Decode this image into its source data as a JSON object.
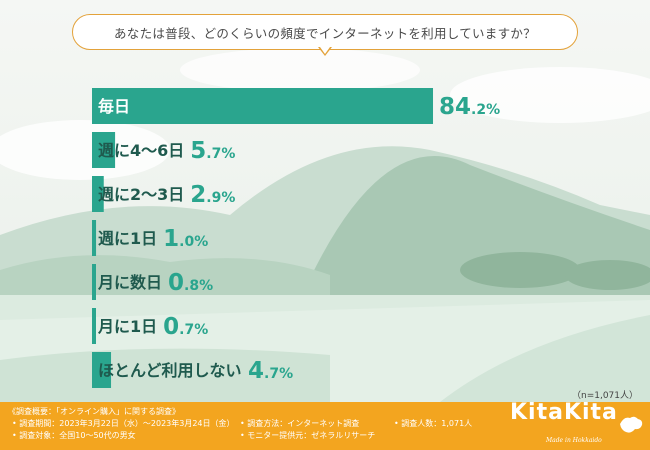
{
  "question": "あなたは普段、どのくらいの頻度でインターネットを利用していますか？",
  "chart_data": {
    "type": "bar",
    "orientation": "horizontal",
    "categories": [
      "毎日",
      "週に4〜6日",
      "週に2〜3日",
      "週に1日",
      "月に数日",
      "月に1日",
      "ほとんど利用しない"
    ],
    "values": [
      84.2,
      5.7,
      2.9,
      1.0,
      0.8,
      0.7,
      4.7
    ],
    "value_labels": [
      {
        "big": "84",
        "small": ".2%"
      },
      {
        "big": "5",
        "small": ".7%"
      },
      {
        "big": "2",
        "small": ".9%"
      },
      {
        "big": "1",
        "small": ".0%"
      },
      {
        "big": "0",
        "small": ".8%"
      },
      {
        "big": "0",
        "small": ".7%"
      },
      {
        "big": "4",
        "small": ".7%"
      }
    ],
    "unit": "%",
    "xlim": [
      0,
      100
    ],
    "bar_color": "#2aa58e"
  },
  "sample_size": "（n=1,071人）",
  "footer": {
    "title": "《調査概要：「オンライン購入」に関する調査》",
    "items": [
      "• 調査期間：2023年3月22日（水）〜2023年3月24日（金）",
      "• 調査方法：インターネット調査",
      "• 調査人数：1,071人",
      "• 調査対象：全国10〜50代の男女",
      "• モニター提供元：ゼネラルリサーチ"
    ]
  },
  "logo": {
    "name": "KitaKita",
    "tagline": "Made in Hokkaido"
  },
  "colors": {
    "accent": "#2aa58e",
    "footer": "#f3a51f",
    "bubble_border": "#e3a23a"
  }
}
